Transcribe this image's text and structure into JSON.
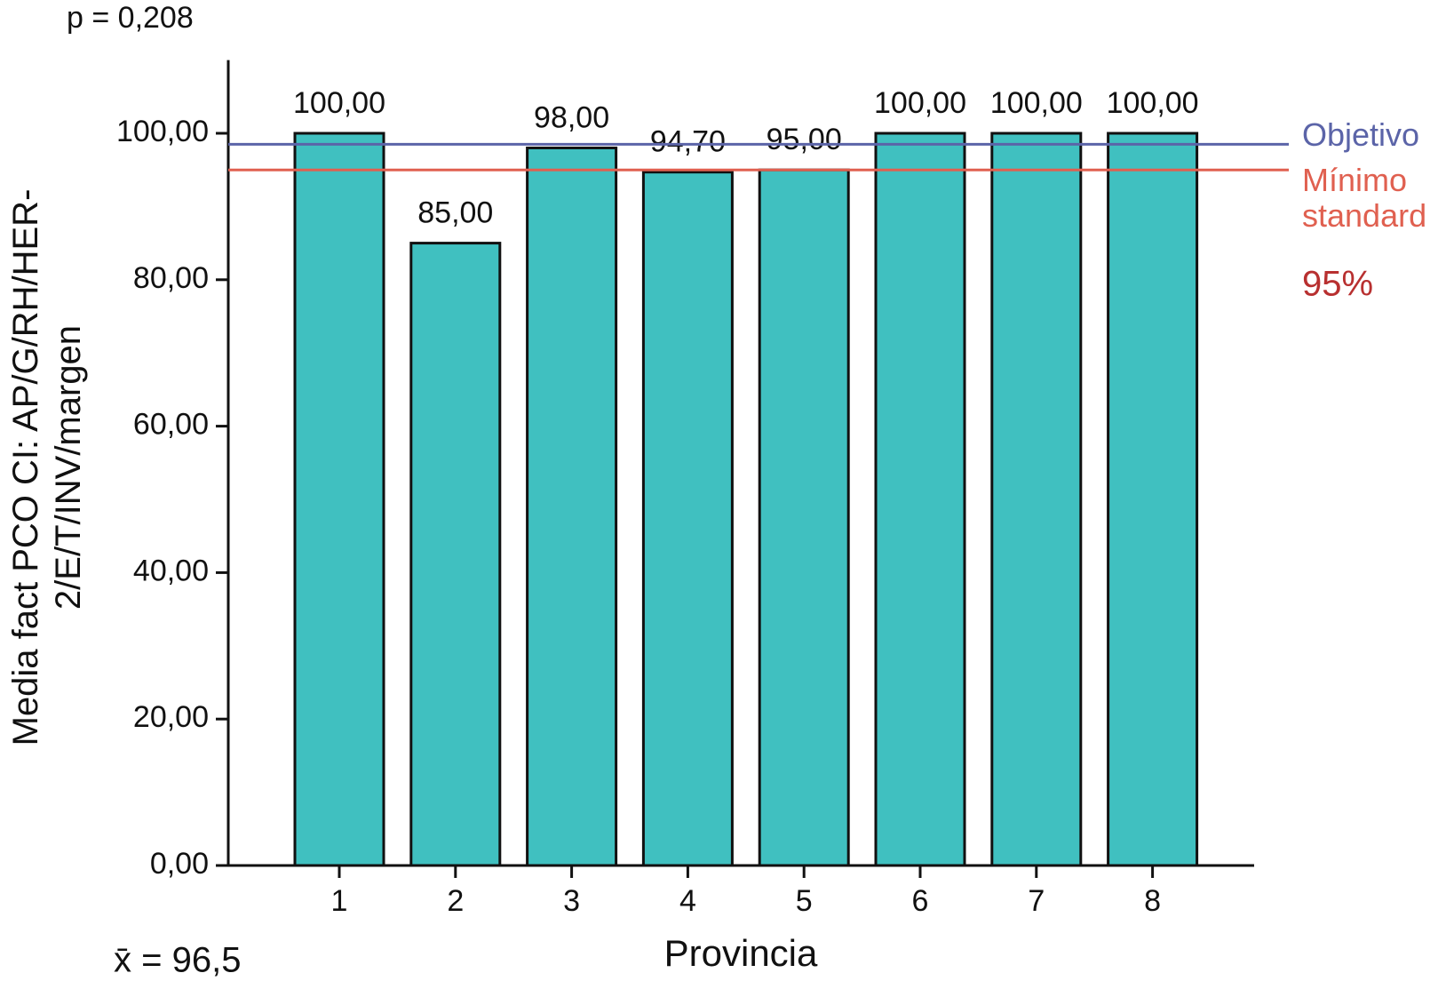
{
  "chart_data": {
    "type": "bar",
    "x_label": "Provincia",
    "y_label": "Media fact PCO CI: AP/G/RH/HER-2/E/T/INV/margen",
    "annotations": [
      "p = 0,208",
      "x̄ = 96,5",
      "95%"
    ],
    "categories": [
      "1",
      "2",
      "3",
      "4",
      "5",
      "6",
      "7",
      "8"
    ],
    "values": [
      100,
      85,
      98,
      94.7,
      95,
      100,
      100,
      100
    ],
    "value_labels": [
      "100,00",
      "85,00",
      "98,00",
      "94,70",
      "95,00",
      "100,00",
      "100,00",
      "100,00"
    ],
    "color": "#40c0c0",
    "ylim": [
      0,
      110
    ],
    "yticks": [
      {
        "value": 0,
        "label": "0,00"
      },
      {
        "value": 20,
        "label": "20,00"
      },
      {
        "value": 40,
        "label": "40,00"
      },
      {
        "value": 60,
        "label": "60,00"
      },
      {
        "value": 80,
        "label": "80,00"
      },
      {
        "value": 100,
        "label": "100,00"
      }
    ],
    "grid": false,
    "reference_lines": [
      {
        "name": "Objetivo",
        "value": 98.5,
        "color": "#5b64a8"
      },
      {
        "name": "Mínimo standard",
        "value": 95,
        "color": "#e06050"
      }
    ]
  }
}
